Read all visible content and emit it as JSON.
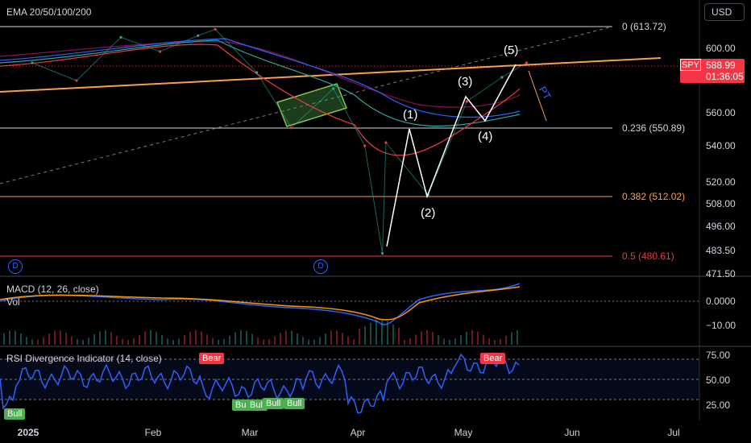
{
  "header": {
    "indicator_title": "EMA 20/50/100/200",
    "currency": "USD"
  },
  "symbol": {
    "ticker": "SPY",
    "price": "588.99",
    "countdown": "01:36:05"
  },
  "main_pane": {
    "price_axis": [
      "600.00",
      "560.00",
      "540.00",
      "520.00",
      "508.00",
      "496.00",
      "483.50",
      "471.50"
    ],
    "fib_levels": [
      {
        "ratio": "0",
        "price": 613.72,
        "label": "0 (613.72)",
        "color": "#d1d4dc"
      },
      {
        "ratio": "0.236",
        "price": 550.89,
        "label": "0.236 (550.89)",
        "color": "#d1d4dc"
      },
      {
        "ratio": "0.382",
        "price": 512.02,
        "label": "0.382 (512.02)",
        "color": "#f7a04a"
      },
      {
        "ratio": "0.5",
        "price": 480.61,
        "label": "0.5 (480.61)",
        "color": "#f23645"
      }
    ],
    "wave_labels": [
      "(1)",
      "(2)",
      "(3)",
      "(4)",
      "(5)"
    ],
    "pt_label": "PT",
    "dividend_markers": [
      "D",
      "D"
    ]
  },
  "macd_pane": {
    "title": "MACD (12, 26, close)",
    "subtitle": "Vol",
    "axis": [
      "0.0000",
      "−10.00"
    ]
  },
  "rsi_pane": {
    "title": "RSI Divergence Indicator (14, close)",
    "axis": [
      "75.00",
      "50.00",
      "25.00"
    ],
    "signals": [
      "Bull",
      "Bear",
      "Bull",
      "Bull",
      "Bull",
      "Bull",
      "Bear"
    ]
  },
  "time_axis": [
    "2025",
    "Feb",
    "Mar",
    "Apr",
    "May",
    "Jun",
    "Jul"
  ],
  "chart_data": {
    "type": "line",
    "title": "",
    "xlabel": "",
    "ylabel": "",
    "ylim": [
      471.5,
      613.72
    ],
    "x": [
      "2025-01-02",
      "2025-01-13",
      "2025-01-24",
      "2025-02-03",
      "2025-02-14",
      "2025-02-19",
      "2025-03-03",
      "2025-03-13",
      "2025-03-25",
      "2025-04-03",
      "2025-04-08",
      "2025-04-09",
      "2025-04-21",
      "2025-05-02",
      "2025-05-12",
      "2025-05-19"
    ],
    "series": [
      {
        "values": [
          591,
          580,
          607,
          598,
          608,
          612,
          585,
          551,
          575,
          540,
          482,
          542,
          513,
          567,
          582,
          591
        ]
      }
    ],
    "colors": {
      "ema20": "#f23645",
      "ema50": "#26a69a",
      "ema100": "#2962ff",
      "ema200": "#880e4f",
      "macd": "#2962ff",
      "signal": "#ff9800",
      "rsi": "#2962ff"
    }
  }
}
